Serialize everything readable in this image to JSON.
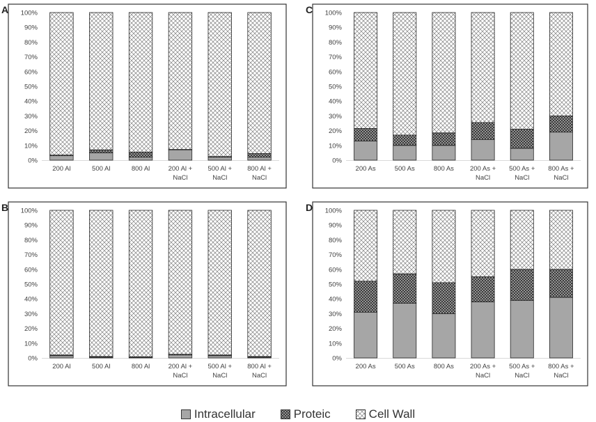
{
  "colors": {
    "intracellular": "#a6a6a6",
    "proteic_bg": "#404040",
    "proteic_dot": "#ffffff",
    "cellwall_bg": "#ffffff",
    "cellwall_line": "#7f7f7f",
    "axis": "#d9d9d9",
    "frame": "#333333",
    "text": "#404040"
  },
  "legend": {
    "intracellular": "Intracellular",
    "proteic": "Proteic",
    "cellwall": "Cell Wall"
  },
  "chart_data": [
    {
      "panel": "A",
      "type": "bar",
      "stacked": true,
      "categories": [
        "200 Al",
        "500 Al",
        "800 Al",
        "200 Al + NaCl",
        "500 Al + NaCl",
        "800 Al + NaCl"
      ],
      "yticks": [
        "0%",
        "10%",
        "20%",
        "30%",
        "40%",
        "50%",
        "60%",
        "70%",
        "80%",
        "90%",
        "100%"
      ],
      "ylim": [
        0,
        100
      ],
      "series": [
        {
          "name": "Intracellular",
          "values": [
            3,
            5,
            2,
            7,
            2,
            2
          ]
        },
        {
          "name": "Proteic",
          "values": [
            0.5,
            2,
            3.5,
            0.3,
            0.5,
            2.5
          ]
        },
        {
          "name": "Cell Wall",
          "values": [
            96.5,
            93,
            94.5,
            92.7,
            97.5,
            95.5
          ]
        }
      ]
    },
    {
      "panel": "C",
      "type": "bar",
      "stacked": true,
      "categories": [
        "200 As",
        "500 As",
        "800 As",
        "200 As + NaCl",
        "500 As + NaCl",
        "800 As + NaCl"
      ],
      "yticks": [
        "0%",
        "10%",
        "20%",
        "30%",
        "40%",
        "50%",
        "60%",
        "70%",
        "80%",
        "90%",
        "100%"
      ],
      "ylim": [
        0,
        100
      ],
      "series": [
        {
          "name": "Intracellular",
          "values": [
            13,
            10,
            10,
            14,
            8,
            19
          ]
        },
        {
          "name": "Proteic",
          "values": [
            8.5,
            7,
            8.5,
            11.5,
            13,
            11
          ]
        },
        {
          "name": "Cell Wall",
          "values": [
            78.5,
            83,
            81.5,
            74.5,
            79,
            70
          ]
        }
      ]
    },
    {
      "panel": "B",
      "type": "bar",
      "stacked": true,
      "categories": [
        "200 Al",
        "500 Al",
        "800 Al",
        "200 Al + NaCl",
        "500 Al + NaCl",
        "800 Al + NaCl"
      ],
      "yticks": [
        "0%",
        "10%",
        "20%",
        "30%",
        "40%",
        "50%",
        "60%",
        "70%",
        "80%",
        "90%",
        "100%"
      ],
      "ylim": [
        0,
        100
      ],
      "series": [
        {
          "name": "Intracellular",
          "values": [
            1.5,
            0.5,
            0.5,
            2,
            1.5,
            0.5
          ]
        },
        {
          "name": "Proteic",
          "values": [
            0.5,
            0.5,
            0.3,
            0.5,
            0.5,
            0.5
          ]
        },
        {
          "name": "Cell Wall",
          "values": [
            98,
            99,
            99.2,
            97.5,
            98,
            99
          ]
        }
      ]
    },
    {
      "panel": "D",
      "type": "bar",
      "stacked": true,
      "categories": [
        "200 As",
        "500 As",
        "800 As",
        "200 As + NaCl",
        "500 As + NaCl",
        "800 As + NaCl"
      ],
      "yticks": [
        "0%",
        "10%",
        "20%",
        "30%",
        "40%",
        "50%",
        "60%",
        "70%",
        "80%",
        "90%",
        "100%"
      ],
      "ylim": [
        0,
        100
      ],
      "series": [
        {
          "name": "Intracellular",
          "values": [
            31,
            37,
            30,
            38,
            39,
            41
          ]
        },
        {
          "name": "Proteic",
          "values": [
            21,
            20,
            21,
            17,
            21,
            19
          ]
        },
        {
          "name": "Cell Wall",
          "values": [
            48,
            43,
            49,
            45,
            40,
            40
          ]
        }
      ]
    }
  ]
}
